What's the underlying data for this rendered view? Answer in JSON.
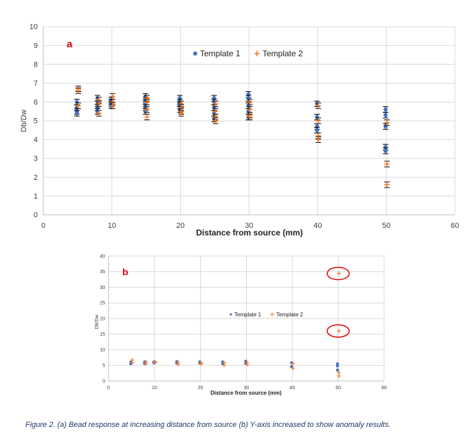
{
  "colors": {
    "template1": "#4472c4",
    "template2": "#ed7d31",
    "panel_letter": "#e00000",
    "grid": "#d9d9d9",
    "errorbar": "#000000",
    "circle": "#e00000"
  },
  "caption": "Figure 2. (a) Bead response at increasing distance from source (b) Y-axis increased to show anomaly results.",
  "chart_data": [
    {
      "type": "scatter",
      "panel": "a",
      "xlabel": "Distance from source (mm)",
      "ylabel": "Db/Dw",
      "xlim": [
        0,
        60
      ],
      "ylim": [
        0,
        10
      ],
      "xticks": [
        "0",
        "10",
        "20",
        "30",
        "40",
        "50",
        "60"
      ],
      "yticks": [
        "0",
        "1",
        "2",
        "3",
        "4",
        "5",
        "6",
        "7",
        "8",
        "9",
        "10"
      ],
      "grid": true,
      "legend_position": "top-center",
      "error_bar": 0.15,
      "series": [
        {
          "name": "Template 1",
          "marker": "circle",
          "x": [
            5,
            5,
            5,
            5,
            8,
            8,
            8,
            8,
            10,
            10,
            10,
            10,
            15,
            15,
            15,
            15,
            15,
            20,
            20,
            20,
            20,
            20,
            25,
            25,
            25,
            25,
            25,
            30,
            30,
            30,
            30,
            30,
            40,
            40,
            40,
            40,
            50,
            50,
            50,
            50,
            50
          ],
          "y": [
            6.0,
            5.7,
            5.5,
            5.4,
            6.2,
            5.9,
            5.7,
            5.5,
            6.1,
            6.0,
            5.9,
            5.8,
            6.3,
            6.1,
            5.9,
            5.7,
            5.5,
            6.2,
            6.0,
            5.9,
            5.8,
            5.6,
            6.2,
            6.0,
            5.7,
            5.4,
            5.1,
            6.4,
            6.2,
            5.8,
            5.5,
            5.2,
            5.9,
            5.2,
            4.7,
            4.5,
            5.6,
            5.3,
            4.7,
            3.6,
            3.4
          ]
        },
        {
          "name": "Template 2",
          "marker": "plus",
          "x": [
            5,
            5,
            5,
            8,
            8,
            8,
            10,
            10,
            10,
            15,
            15,
            15,
            15,
            20,
            20,
            20,
            20,
            25,
            25,
            25,
            25,
            30,
            30,
            30,
            30,
            40,
            40,
            40,
            40,
            50,
            50,
            50
          ],
          "y": [
            6.7,
            6.6,
            5.8,
            6.1,
            5.9,
            5.4,
            6.3,
            6.0,
            5.8,
            6.2,
            6.0,
            5.6,
            5.2,
            5.9,
            5.7,
            5.5,
            5.4,
            5.9,
            5.5,
            5.2,
            5.0,
            6.0,
            5.6,
            5.3,
            5.2,
            5.8,
            5.0,
            4.2,
            4.0,
            4.9,
            2.7,
            1.6
          ]
        }
      ]
    },
    {
      "type": "scatter",
      "panel": "b",
      "xlabel": "Distance from source (mm)",
      "ylabel": "Db/Dw",
      "xlim": [
        0,
        60
      ],
      "ylim": [
        0,
        40
      ],
      "xticks": [
        "0",
        "10",
        "20",
        "30",
        "40",
        "50",
        "60"
      ],
      "yticks": [
        "0",
        "5",
        "10",
        "15",
        "20",
        "25",
        "30",
        "35",
        "40"
      ],
      "grid": true,
      "legend_position": "center",
      "annotations": [
        {
          "x": 50,
          "y": 34.4,
          "shape": "circle"
        },
        {
          "x": 50,
          "y": 16.0,
          "shape": "circle"
        }
      ],
      "series": [
        {
          "name": "Template 1",
          "marker": "circle",
          "x": [
            5,
            5,
            8,
            8,
            10,
            10,
            15,
            15,
            20,
            20,
            25,
            25,
            30,
            30,
            40,
            40,
            50,
            50,
            50
          ],
          "y": [
            6.0,
            5.5,
            6.1,
            5.6,
            6.1,
            5.8,
            6.2,
            5.7,
            6.1,
            5.7,
            6.1,
            5.5,
            6.3,
            5.6,
            5.8,
            4.6,
            5.5,
            4.8,
            3.5
          ]
        },
        {
          "name": "Template 2",
          "marker": "plus",
          "x": [
            5,
            5,
            8,
            8,
            10,
            10,
            15,
            15,
            20,
            20,
            25,
            25,
            30,
            30,
            40,
            40,
            50,
            50,
            50,
            50
          ],
          "y": [
            6.7,
            5.9,
            6.1,
            5.5,
            6.2,
            5.9,
            6.0,
            5.3,
            5.8,
            5.5,
            5.8,
            5.1,
            6.0,
            5.3,
            5.6,
            4.1,
            34.4,
            16.0,
            2.7,
            1.6
          ]
        }
      ]
    }
  ]
}
